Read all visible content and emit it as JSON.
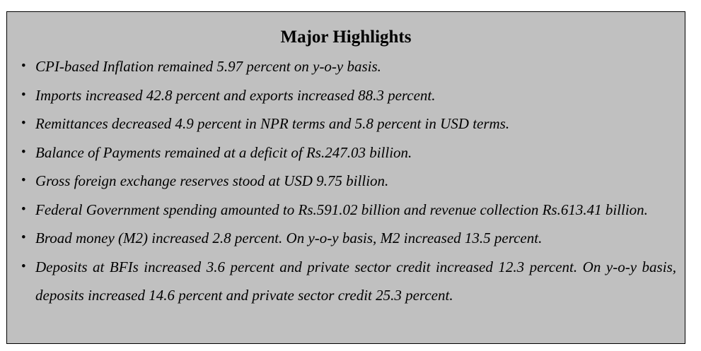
{
  "title": "Major Highlights",
  "items": [
    "CPI-based Inflation remained 5.97 percent on y-o-y basis.",
    "Imports increased 42.8 percent and exports increased 88.3 percent.",
    "Remittances decreased 4.9 percent in NPR terms and 5.8 percent in USD terms.",
    "Balance of  Payments remained at a deficit of Rs.247.03 billion.",
    "Gross foreign exchange reserves stood at USD 9.75 billion.",
    "Federal Government spending amounted to Rs.591.02 billion and revenue collection Rs.613.41 billion.",
    "Broad money (M2) increased 2.8 percent. On y-o-y basis, M2 increased 13.5 percent.",
    "Deposits at BFIs increased 3.6 percent and private sector credit increased 12.3 percent. On y-o-y basis, deposits increased 14.6 percent and private sector credit 25.3 percent."
  ]
}
